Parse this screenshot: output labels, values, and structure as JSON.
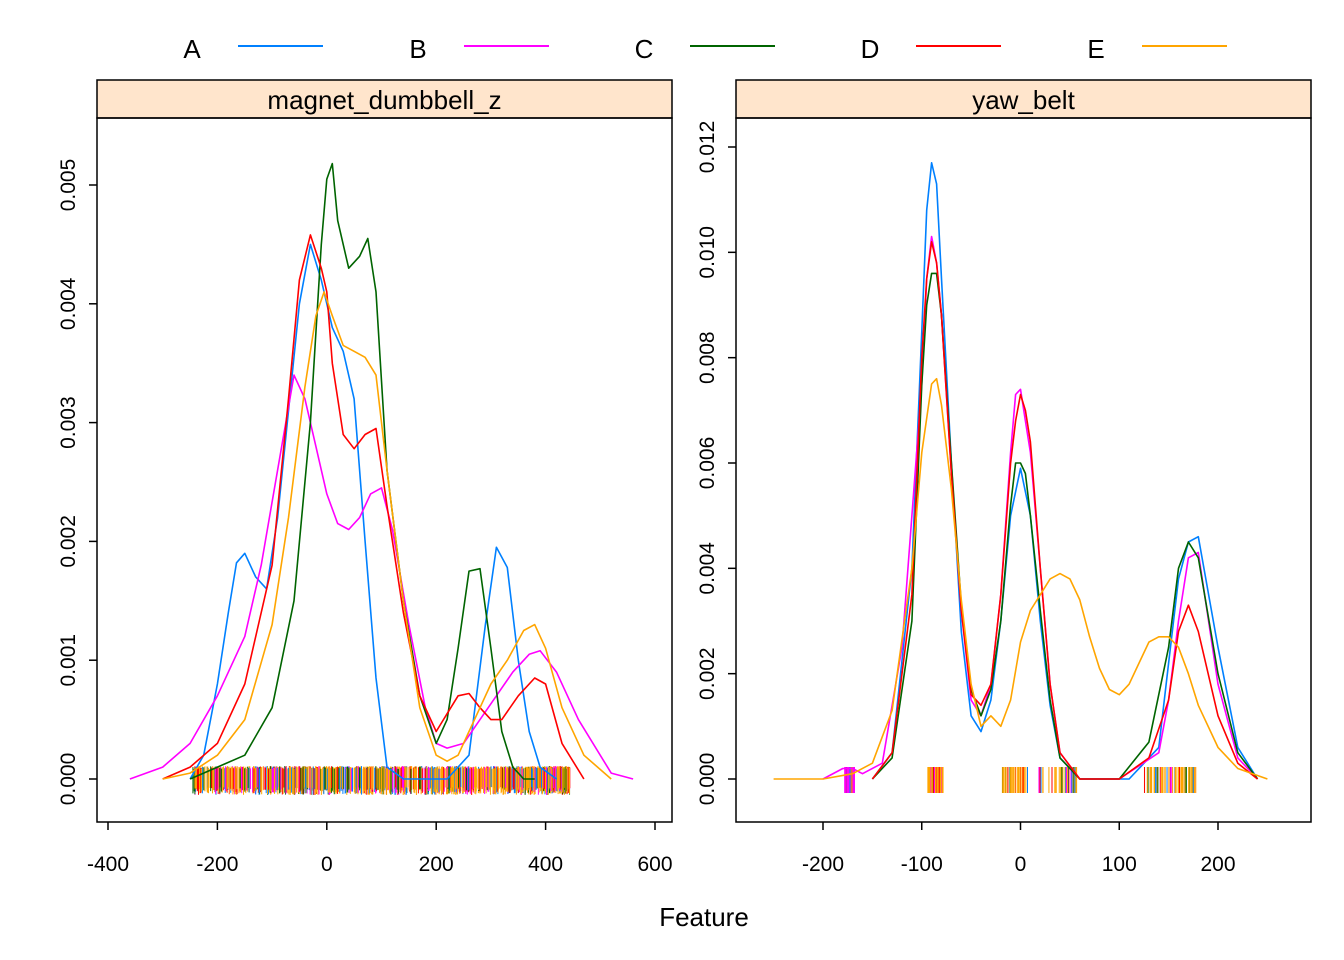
{
  "legend": [
    {
      "label": "A",
      "color": "#0080ff"
    },
    {
      "label": "B",
      "color": "#ff00ff"
    },
    {
      "label": "C",
      "color": "#006400"
    },
    {
      "label": "D",
      "color": "#ff0000"
    },
    {
      "label": "E",
      "color": "#ffa500"
    }
  ],
  "xlabel": "Feature",
  "chart_data": [
    {
      "type": "line",
      "panel": "magnet_dumbbell_z",
      "xlim": [
        -400,
        600
      ],
      "ylim": [
        0,
        0.005
      ],
      "x_ticks": [
        -400,
        -200,
        0,
        200,
        400,
        600
      ],
      "x_tick_labels": [
        "-400",
        "-200",
        "0",
        "200",
        "400",
        "600"
      ],
      "y_ticks": [
        0.0,
        0.001,
        0.002,
        0.003,
        0.004,
        0.005
      ],
      "y_tick_labels": [
        "0.000",
        "0.001",
        "0.002",
        "0.003",
        "0.004",
        "0.005"
      ],
      "rug": {
        "from": -245,
        "to": 445,
        "dense_to": 400
      },
      "series": [
        {
          "name": "A",
          "x": [
            -250,
            -225,
            -200,
            -180,
            -165,
            -150,
            -130,
            -110,
            -90,
            -70,
            -50,
            -30,
            -10,
            10,
            30,
            50,
            70,
            90,
            110,
            140,
            180,
            220,
            260,
            290,
            310,
            330,
            350,
            370,
            390,
            420
          ],
          "y": [
            0,
            0.0002,
            0.0008,
            0.0014,
            0.00182,
            0.0019,
            0.0017,
            0.0016,
            0.0022,
            0.0031,
            0.004,
            0.0045,
            0.0042,
            0.0038,
            0.0036,
            0.0032,
            0.002,
            0.00085,
            0.0001,
            0,
            0,
            0,
            0.0002,
            0.0013,
            0.00195,
            0.00178,
            0.001,
            0.0004,
            0.0001,
            0
          ]
        },
        {
          "name": "B",
          "x": [
            -360,
            -300,
            -250,
            -200,
            -150,
            -120,
            -90,
            -60,
            -40,
            -20,
            0,
            20,
            40,
            60,
            80,
            100,
            120,
            150,
            180,
            200,
            220,
            250,
            280,
            310,
            340,
            370,
            390,
            420,
            460,
            520,
            560
          ],
          "y": [
            0,
            0.0001,
            0.0003,
            0.0007,
            0.0012,
            0.0018,
            0.0026,
            0.0034,
            0.0032,
            0.0028,
            0.0024,
            0.00215,
            0.0021,
            0.0022,
            0.0024,
            0.00245,
            0.0021,
            0.0013,
            0.0006,
            0.0003,
            0.00026,
            0.0003,
            0.0005,
            0.0007,
            0.0009,
            0.00105,
            0.00108,
            0.0009,
            0.0005,
            5e-05,
            0
          ]
        },
        {
          "name": "C",
          "x": [
            -250,
            -200,
            -150,
            -100,
            -60,
            -30,
            -10,
            0,
            10,
            20,
            40,
            60,
            75,
            90,
            110,
            140,
            170,
            200,
            220,
            240,
            260,
            280,
            300,
            320,
            340,
            360,
            380
          ],
          "y": [
            0,
            0.0001,
            0.0002,
            0.0006,
            0.0015,
            0.003,
            0.0045,
            0.00505,
            0.00518,
            0.0047,
            0.0043,
            0.0044,
            0.00455,
            0.0041,
            0.0026,
            0.0015,
            0.0007,
            0.0003,
            0.0005,
            0.0011,
            0.00175,
            0.00177,
            0.0011,
            0.0004,
            0.0001,
            0,
            0
          ]
        },
        {
          "name": "D",
          "x": [
            -300,
            -250,
            -200,
            -150,
            -100,
            -70,
            -50,
            -30,
            -10,
            0,
            10,
            30,
            50,
            70,
            90,
            110,
            140,
            170,
            200,
            220,
            240,
            260,
            280,
            300,
            320,
            350,
            380,
            400,
            430,
            470
          ],
          "y": [
            0,
            0.0001,
            0.0003,
            0.0008,
            0.0018,
            0.0032,
            0.0042,
            0.00458,
            0.0043,
            0.0041,
            0.0035,
            0.0029,
            0.00278,
            0.0029,
            0.00295,
            0.0023,
            0.0014,
            0.0007,
            0.0004,
            0.00055,
            0.0007,
            0.00072,
            0.0006,
            0.0005,
            0.0005,
            0.0007,
            0.00085,
            0.0008,
            0.0003,
            0
          ]
        },
        {
          "name": "E",
          "x": [
            -300,
            -250,
            -200,
            -150,
            -100,
            -70,
            -40,
            -20,
            -5,
            10,
            30,
            50,
            70,
            90,
            110,
            140,
            170,
            200,
            220,
            240,
            260,
            280,
            300,
            330,
            360,
            380,
            400,
            430,
            470,
            520
          ],
          "y": [
            0,
            5e-05,
            0.0002,
            0.0005,
            0.0013,
            0.0022,
            0.0033,
            0.0039,
            0.0041,
            0.0039,
            0.00365,
            0.0036,
            0.00355,
            0.0034,
            0.0026,
            0.0015,
            0.0006,
            0.0002,
            0.00015,
            0.0002,
            0.0004,
            0.0006,
            0.0008,
            0.001,
            0.00125,
            0.0013,
            0.0011,
            0.0006,
            0.0002,
            0
          ]
        }
      ]
    },
    {
      "type": "line",
      "panel": "yaw_belt",
      "xlim": [
        -260,
        260
      ],
      "ylim": [
        0,
        0.012
      ],
      "x_ticks": [
        -200,
        -100,
        0,
        100,
        200
      ],
      "x_tick_labels": [
        "-200",
        "-100",
        "0",
        "100",
        "200"
      ],
      "y_ticks": [
        0.0,
        0.002,
        0.004,
        0.006,
        0.008,
        0.01,
        0.012
      ],
      "y_tick_labels": [
        "0.000",
        "0.002",
        "0.004",
        "0.006",
        "0.008",
        "0.010",
        "0.012"
      ],
      "rug_clusters": [
        {
          "from": -178,
          "to": -168,
          "color": "#ff00ff"
        },
        {
          "from": -95,
          "to": -78,
          "color": "#ffa500"
        },
        {
          "from": -20,
          "to": 60,
          "color": "#ffa500"
        },
        {
          "from": 125,
          "to": 178,
          "color": "#ffa500"
        }
      ],
      "series": [
        {
          "name": "A",
          "x": [
            -150,
            -130,
            -110,
            -100,
            -95,
            -90,
            -85,
            -80,
            -70,
            -60,
            -50,
            -40,
            -30,
            -20,
            -10,
            0,
            10,
            20,
            30,
            40,
            60,
            80,
            110,
            140,
            150,
            160,
            170,
            180,
            200,
            220,
            240
          ],
          "y": [
            0,
            0.0005,
            0.004,
            0.0085,
            0.0108,
            0.0117,
            0.0113,
            0.0095,
            0.006,
            0.0028,
            0.0012,
            0.0009,
            0.0015,
            0.003,
            0.005,
            0.0059,
            0.005,
            0.003,
            0.0014,
            0.0004,
            0,
            0,
            0,
            0.0006,
            0.0022,
            0.0038,
            0.0045,
            0.0046,
            0.0025,
            0.0006,
            0
          ]
        },
        {
          "name": "B",
          "x": [
            -200,
            -180,
            -170,
            -160,
            -140,
            -120,
            -100,
            -95,
            -90,
            -85,
            -80,
            -70,
            -60,
            -50,
            -40,
            -30,
            -20,
            -10,
            -5,
            0,
            5,
            10,
            20,
            30,
            40,
            60,
            100,
            140,
            150,
            160,
            170,
            180,
            200,
            220,
            240
          ],
          "y": [
            0,
            0.0002,
            0.0002,
            0.0001,
            0.0003,
            0.0025,
            0.0075,
            0.0095,
            0.0103,
            0.0098,
            0.0088,
            0.0058,
            0.0032,
            0.0015,
            0.0012,
            0.0018,
            0.0035,
            0.0062,
            0.0073,
            0.0074,
            0.0068,
            0.0062,
            0.004,
            0.0018,
            0.0005,
            0,
            0,
            0.0005,
            0.0015,
            0.003,
            0.0042,
            0.0043,
            0.0018,
            0.0004,
            0
          ]
        },
        {
          "name": "C",
          "x": [
            -150,
            -130,
            -110,
            -100,
            -95,
            -90,
            -85,
            -80,
            -70,
            -60,
            -50,
            -40,
            -30,
            -20,
            -10,
            -5,
            0,
            5,
            10,
            20,
            30,
            40,
            60,
            100,
            130,
            150,
            160,
            170,
            180,
            200,
            220,
            240
          ],
          "y": [
            0,
            0.0004,
            0.003,
            0.0075,
            0.009,
            0.0096,
            0.0096,
            0.0088,
            0.006,
            0.0033,
            0.0017,
            0.0012,
            0.0017,
            0.003,
            0.0052,
            0.006,
            0.006,
            0.0058,
            0.005,
            0.0032,
            0.0015,
            0.0004,
            0,
            0,
            0.0007,
            0.0025,
            0.004,
            0.0045,
            0.0042,
            0.002,
            0.0005,
            0
          ]
        },
        {
          "name": "D",
          "x": [
            -150,
            -130,
            -110,
            -100,
            -95,
            -90,
            -85,
            -80,
            -70,
            -60,
            -50,
            -40,
            -30,
            -20,
            -10,
            -5,
            0,
            5,
            10,
            20,
            30,
            40,
            60,
            100,
            130,
            150,
            160,
            170,
            180,
            200,
            220,
            240
          ],
          "y": [
            0,
            0.0005,
            0.0035,
            0.008,
            0.0095,
            0.0102,
            0.0098,
            0.0088,
            0.0058,
            0.0032,
            0.0016,
            0.0014,
            0.0018,
            0.0035,
            0.006,
            0.0068,
            0.0073,
            0.007,
            0.0064,
            0.004,
            0.0018,
            0.0005,
            0,
            0,
            0.0004,
            0.0015,
            0.0028,
            0.0033,
            0.0028,
            0.0012,
            0.0003,
            0
          ]
        },
        {
          "name": "E",
          "x": [
            -250,
            -200,
            -170,
            -150,
            -130,
            -110,
            -100,
            -90,
            -85,
            -80,
            -70,
            -60,
            -50,
            -40,
            -30,
            -20,
            -10,
            0,
            10,
            20,
            30,
            40,
            50,
            60,
            70,
            80,
            90,
            100,
            110,
            120,
            130,
            140,
            150,
            160,
            170,
            180,
            200,
            220,
            250
          ],
          "y": [
            0,
            0,
            0.0001,
            0.0003,
            0.0013,
            0.004,
            0.0062,
            0.0075,
            0.0076,
            0.0071,
            0.0055,
            0.0034,
            0.0018,
            0.001,
            0.0012,
            0.001,
            0.0015,
            0.0026,
            0.0032,
            0.0035,
            0.0038,
            0.0039,
            0.0038,
            0.0034,
            0.0027,
            0.0021,
            0.0017,
            0.0016,
            0.0018,
            0.0022,
            0.0026,
            0.0027,
            0.0027,
            0.0025,
            0.002,
            0.0014,
            0.0006,
            0.0002,
            0
          ]
        }
      ]
    }
  ]
}
